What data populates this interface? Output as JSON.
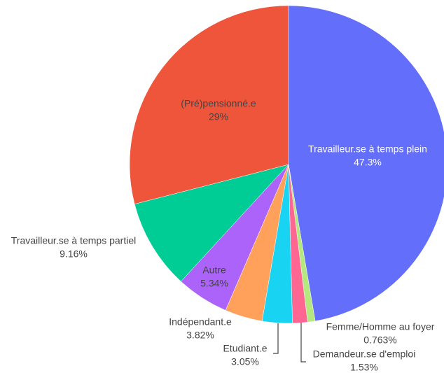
{
  "chart_data": {
    "type": "pie",
    "categories": [
      "Travailleur.se à temps plein",
      "Femme/Homme au foyer",
      "Demandeur.se d'emploi",
      "Etudiant.e",
      "Indépendant.e",
      "Autre",
      "Travailleur.se à temps partiel",
      "(Pré)pensionné.e"
    ],
    "values": [
      47.3,
      0.763,
      1.53,
      3.05,
      3.82,
      5.34,
      9.16,
      29
    ],
    "value_labels": [
      "47.3%",
      "0.763%",
      "1.53%",
      "3.05%",
      "3.82%",
      "5.34%",
      "9.16%",
      "29%"
    ],
    "colors": [
      "#636efa",
      "#b6e880",
      "#ff6692",
      "#19d3f3",
      "#ffa15a",
      "#ab63fa",
      "#00cc96",
      "#ef553b"
    ]
  }
}
